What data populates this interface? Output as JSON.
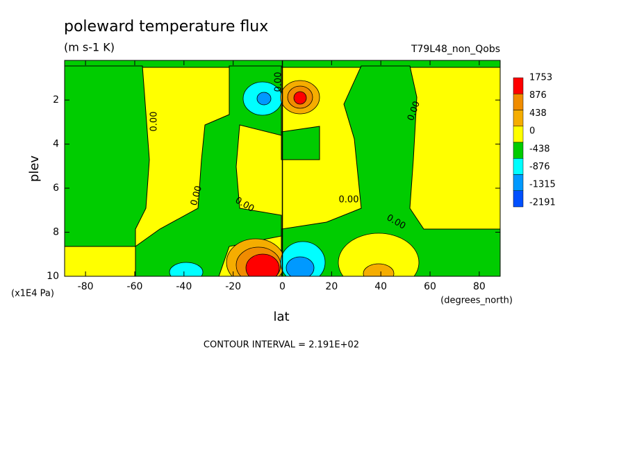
{
  "chart_data": {
    "type": "contour",
    "title": "poleward temperature flux",
    "subtitle": "(m s-1 K)",
    "dataset": "T79L48_non_Qobs",
    "x_label": "lat",
    "x_units": "(degrees_north)",
    "y_label": "plev",
    "y_units": "(x1E4 Pa)",
    "footer": "CONTOUR INTERVAL = 2.191E+02",
    "xlim": [
      -88.5,
      88.5
    ],
    "ylim": [
      10,
      0.2
    ],
    "xticks": [
      -80,
      -60,
      -40,
      -20,
      0,
      20,
      40,
      60,
      80
    ],
    "yticks": [
      2,
      4,
      6,
      8,
      10
    ],
    "levels": [
      1753,
      876,
      438,
      0,
      -438,
      -876,
      -1315,
      -2191
    ],
    "level_colors": [
      "#ff0000",
      "#f08c00",
      "#f5ad00",
      "#ffff00",
      "#00cc00",
      "#00ffff",
      "#0099ff",
      "#0050ff"
    ],
    "contour_labels": [
      {
        "value": 0,
        "label": "0.00"
      },
      {
        "value": 0,
        "label": "0.00"
      },
      {
        "value": 0,
        "label": "0.00"
      },
      {
        "value": 0,
        "label": "0.00"
      },
      {
        "value": 0,
        "label": "0.00"
      },
      {
        "value": 0,
        "label": "0.00"
      },
      {
        "value": 0,
        "label": "0.00"
      }
    ]
  }
}
